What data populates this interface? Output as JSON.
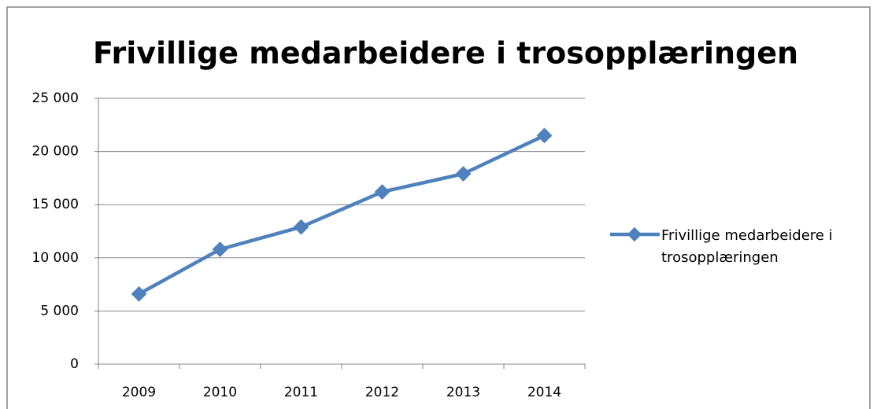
{
  "chart_data": {
    "type": "line",
    "title": "Frivillige medarbeidere i trosopplæringen",
    "categories": [
      "2009",
      "2010",
      "2011",
      "2012",
      "2013",
      "2014"
    ],
    "series": [
      {
        "name": "Frivillige medarbeidere i trosopplæringen",
        "color": "#4f81bd",
        "values": [
          6600,
          10800,
          12900,
          16200,
          17900,
          21500
        ]
      }
    ],
    "ylim": [
      0,
      25000
    ],
    "yticks": [
      {
        "value": 0,
        "label": "0"
      },
      {
        "value": 5000,
        "label": "5 000"
      },
      {
        "value": 10000,
        "label": "10 000"
      },
      {
        "value": 15000,
        "label": "15 000"
      },
      {
        "value": 20000,
        "label": "20 000"
      },
      {
        "value": 25000,
        "label": "25 000"
      }
    ],
    "grid": true,
    "legend": "right"
  }
}
